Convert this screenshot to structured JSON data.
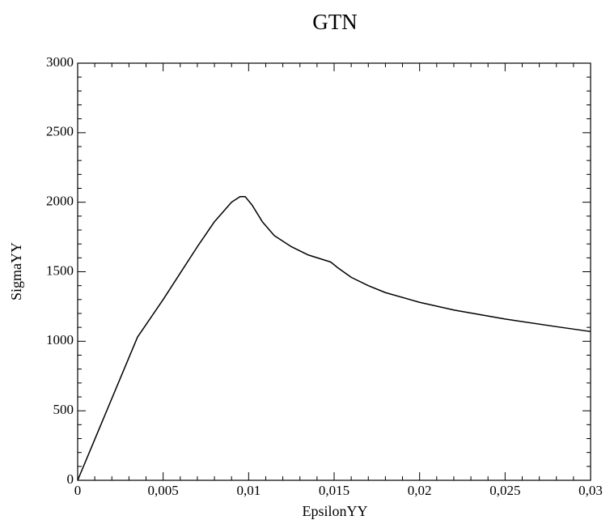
{
  "chart_data": {
    "type": "line",
    "title": "GTN",
    "x_label": "EpsilonYY",
    "y_label": "SigmaYY",
    "color": "#000000",
    "x": [
      0,
      0.0035,
      0.005,
      0.006,
      0.007,
      0.008,
      0.009,
      0.0095,
      0.0098,
      0.0102,
      0.0108,
      0.0115,
      0.0125,
      0.0135,
      0.0148,
      0.0152,
      0.016,
      0.017,
      0.018,
      0.02,
      0.022,
      0.025,
      0.028,
      0.03
    ],
    "values": [
      0,
      1030,
      1300,
      1490,
      1680,
      1860,
      2000,
      2040,
      2040,
      1980,
      1860,
      1760,
      1680,
      1620,
      1570,
      1530,
      1460,
      1400,
      1350,
      1280,
      1225,
      1160,
      1105,
      1070
    ],
    "xlim": [
      0,
      0.03
    ],
    "xticks": [
      0,
      {
        "value": 0.005,
        "label": "0,005"
      },
      {
        "value": 0.01,
        "label": "0,01"
      },
      {
        "value": 0.015,
        "label": "0,015"
      },
      {
        "value": 0.02,
        "label": "0,02"
      },
      {
        "value": 0.025,
        "label": "0,025"
      },
      {
        "value": 0.03,
        "label": "0,03"
      }
    ],
    "ylim": [
      0,
      3000
    ],
    "yticks": [
      0,
      500,
      1000,
      1500,
      2000,
      2500,
      3000
    ]
  }
}
